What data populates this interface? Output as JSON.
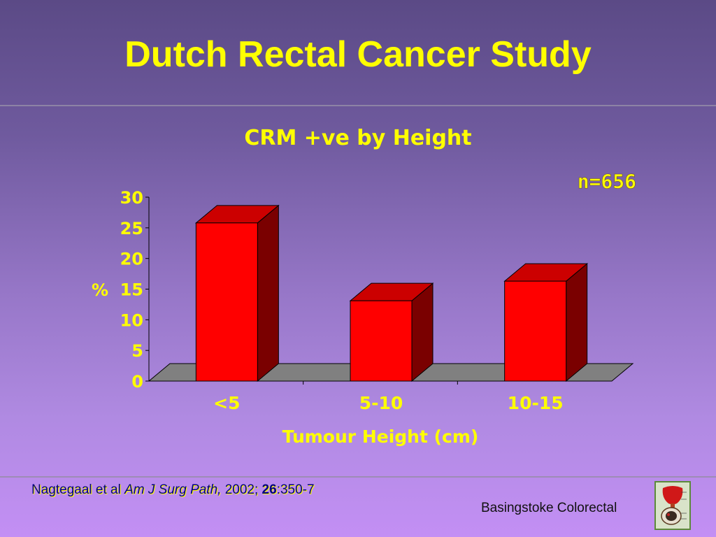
{
  "slide": {
    "title": "Dutch Rectal Cancer Study",
    "sample_size": "n=656"
  },
  "citation": {
    "authors": "Nagtegaal et al ",
    "journal": "Am J Surg Path,",
    "year": " 2002; ",
    "volume": "26",
    "pages": ":350-7"
  },
  "footer": {
    "brand": "Basingstoke Colorectal"
  },
  "logo": {
    "icon": "anatomy-logo-icon"
  },
  "chart_data": {
    "type": "bar",
    "title": "CRM +ve by Height",
    "xlabel": "Tumour Height (cm)",
    "ylabel": "%",
    "categories": [
      "<5",
      "5-10",
      "10-15"
    ],
    "values": [
      25.8,
      13.1,
      16.3
    ],
    "ylim": [
      0,
      30
    ],
    "yticks": [
      "0",
      "5",
      "10",
      "15",
      "20",
      "25",
      "30"
    ],
    "colors": {
      "bar_front": "#ff0000",
      "bar_top": "#cc0000",
      "bar_side": "#7a0000",
      "floor": "#808080",
      "text": "#ffff00"
    },
    "grid": false,
    "legend": "none"
  }
}
